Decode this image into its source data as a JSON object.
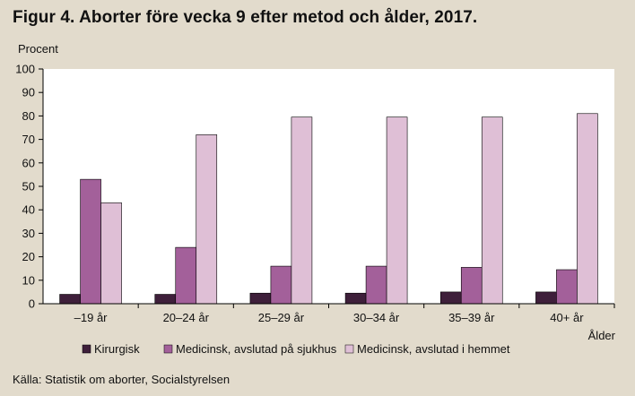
{
  "title": "Figur 4. Aborter före vecka 9 efter metod och ålder, 2017.",
  "source": "Källa: Statistik om aborter, Socialstyrelsen",
  "chart_data": {
    "type": "bar",
    "ylabel": "Procent",
    "xlabel": "Ålder",
    "ylim": [
      0,
      100
    ],
    "yticks": [
      0,
      10,
      20,
      30,
      40,
      50,
      60,
      70,
      80,
      90,
      100
    ],
    "grid": false,
    "legend_position": "bottom",
    "categories": [
      "–19 år",
      "20–24 år",
      "25–29 år",
      "30–34 år",
      "35–39 år",
      "40+ år"
    ],
    "series": [
      {
        "name": "Kirurgisk",
        "color": "#3e1f3a",
        "values": [
          4,
          4,
          4.5,
          4.5,
          5,
          5
        ]
      },
      {
        "name": "Medicinsk, avslutad på sjukhus",
        "color": "#a3609a",
        "values": [
          53,
          24,
          16,
          16,
          15.5,
          14.5
        ]
      },
      {
        "name": "Medicinsk, avslutad i hemmet",
        "color": "#dfbfd6",
        "values": [
          43,
          72,
          79.5,
          79.5,
          79.5,
          81
        ]
      }
    ]
  }
}
